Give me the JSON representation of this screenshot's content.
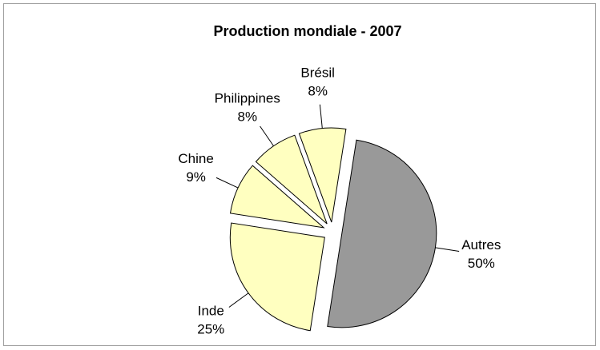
{
  "chart_data": {
    "type": "pie",
    "title": "Production mondiale - 2007",
    "categories": [
      "Brésil",
      "Autres",
      "Inde",
      "Chine",
      "Philippines"
    ],
    "values": [
      8,
      50,
      25,
      9,
      8
    ],
    "value_labels": [
      "8%",
      "50%",
      "25%",
      "9%",
      "8%"
    ],
    "colors": [
      "#ffffc0",
      "#999999",
      "#ffffc0",
      "#ffffc0",
      "#ffffc0"
    ]
  }
}
